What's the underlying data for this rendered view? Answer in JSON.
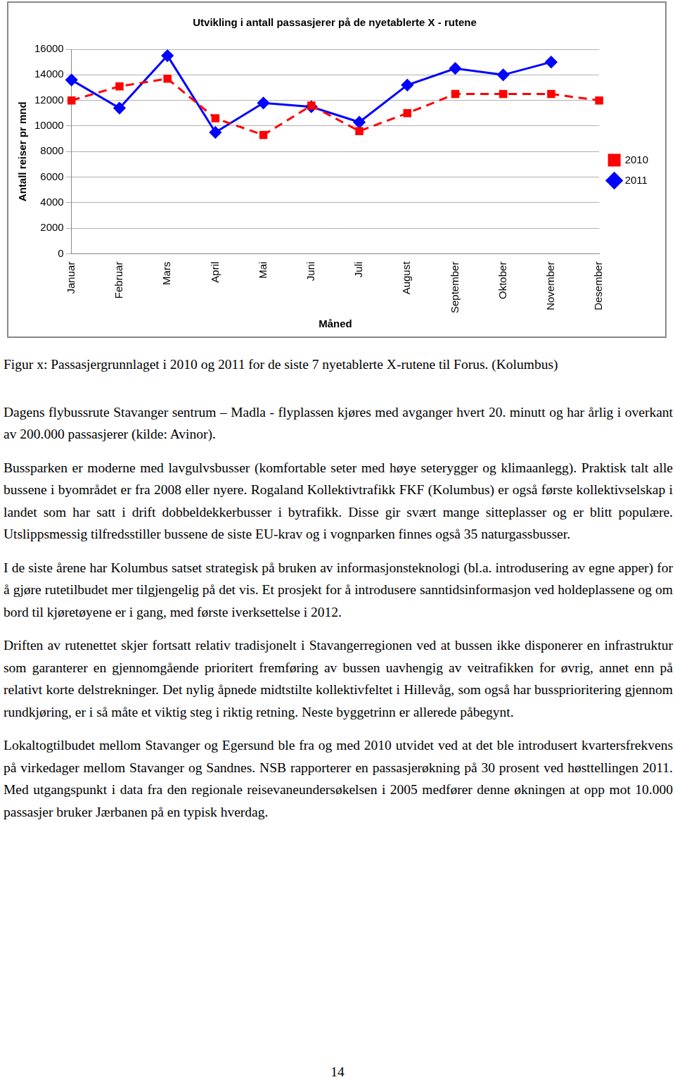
{
  "chart_data": {
    "type": "line",
    "title": "Utvikling i antall passasjerer på de nyetablerte X - rutene",
    "x_label": "Måned",
    "y_label": "Antall reiser pr mnd",
    "categories": [
      "Januar",
      "Februar",
      "Mars",
      "April",
      "Mai",
      "Juni",
      "Juli",
      "August",
      "September",
      "Oktober",
      "November",
      "Desember"
    ],
    "series": [
      {
        "name": "2010",
        "color": "#ff0000",
        "marker": "square",
        "line_style": "dashed",
        "values": [
          12000,
          13100,
          13700,
          10600,
          9300,
          11600,
          9600,
          11000,
          12500,
          12500,
          12500,
          12000
        ]
      },
      {
        "name": "2011",
        "color": "#0000ff",
        "marker": "diamond",
        "line_style": "solid",
        "values": [
          13600,
          11400,
          15500,
          9500,
          11800,
          11500,
          10300,
          13200,
          14500,
          14000,
          15000,
          null
        ]
      }
    ],
    "ylim": [
      0,
      16000
    ],
    "yticks": [
      0,
      2000,
      4000,
      6000,
      8000,
      10000,
      12000,
      14000,
      16000
    ],
    "grid": true,
    "legend": "right"
  },
  "document": {
    "caption": "Figur x: Passasjergrunnlaget i 2010 og 2011 for de siste 7 nyetablerte X-rutene til Forus. (Kolumbus)",
    "paragraphs": [
      "Dagens flybussrute Stavanger sentrum – Madla - flyplassen kjøres med avganger hvert 20. minutt og har årlig i overkant av 200.000 passasjerer (kilde: Avinor).",
      "Bussparken er moderne med lavgulvsbusser (komfortable seter med høye seterygger og klimaanlegg). Praktisk talt alle bussene i byområdet er fra 2008 eller nyere. Rogaland Kollektivtrafikk FKF (Kolumbus) er også første kollektivselskap i landet som har satt i drift dobbeldekkerbusser i bytrafikk. Disse gir svært mange sitteplasser og er blitt populære. Utslippsmessig tilfredsstiller bussene de siste EU-krav og i vognparken finnes også 35 naturgassbusser.",
      "I de siste årene har Kolumbus satset strategisk på bruken av informasjonsteknologi (bl.a. introdusering av egne apper) for å gjøre rutetilbudet mer tilgjengelig på det vis. Et prosjekt for å introdusere sanntidsinformasjon ved holdeplassene og om bord til kjøretøyene er i gang, med første iverksettelse i 2012.",
      "Driften av rutenettet skjer fortsatt relativ tradisjonelt i Stavangerregionen ved at bussen ikke disponerer en infrastruktur som garanterer en gjennomgående prioritert fremføring av bussen uavhengig av veitrafikken for øvrig, annet enn på relativt korte delstrekninger. Det nylig åpnede midtstilte kollektivfeltet i Hillevåg, som også har bussprioritering gjennom rundkjøring, er i så måte et viktig steg i riktig retning. Neste byggetrinn er allerede påbegynt.",
      "Lokaltogtilbudet mellom Stavanger og Egersund ble fra og med 2010 utvidet ved at det ble introdusert kvartersfrekvens på virkedager mellom Stavanger og Sandnes. NSB rapporterer en passasjerøkning på 30 prosent ved høsttellingen 2011. Med utgangspunkt i data fra den regionale reisevaneundersøkelsen i 2005 medfører denne økningen at opp mot 10.000 passasjer bruker Jærbanen på en typisk hverdag."
    ],
    "page_number": "14"
  }
}
